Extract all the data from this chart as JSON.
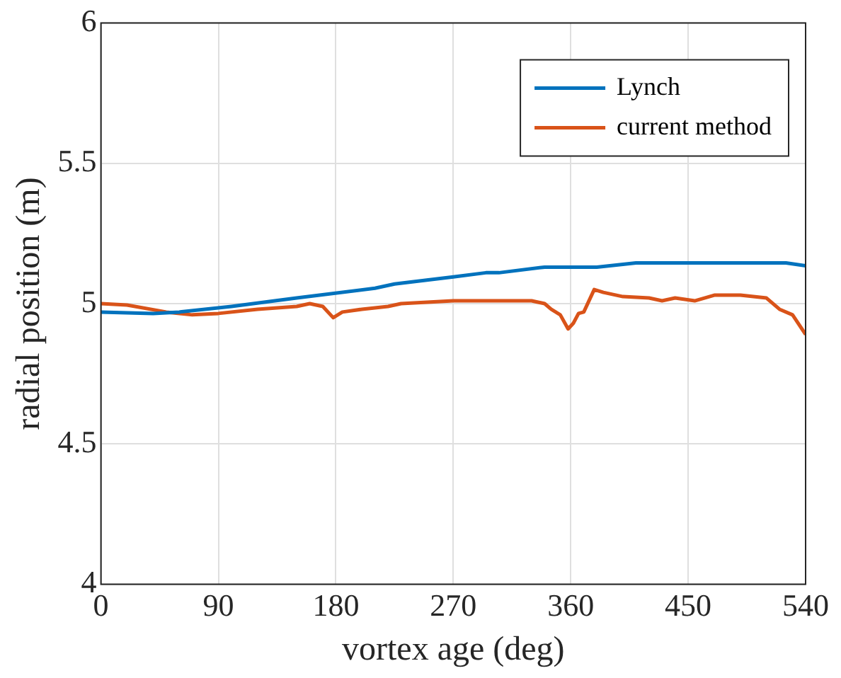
{
  "chart_data": {
    "type": "line",
    "xlabel": "vortex age (deg)",
    "ylabel": "radial position (m)",
    "xlim": [
      0,
      540
    ],
    "xticks": [
      0,
      90,
      180,
      270,
      360,
      450,
      540
    ],
    "ylim": [
      4,
      6
    ],
    "yticks": [
      4,
      4.5,
      5,
      5.5,
      6
    ],
    "grid": true,
    "legend": "top right",
    "series": [
      {
        "name": "Lynch",
        "color": "#0072bd",
        "x": [
          0,
          40,
          60,
          100,
          150,
          210,
          225,
          270,
          295,
          305,
          340,
          380,
          410,
          525,
          540
        ],
        "values": [
          4.97,
          4.965,
          4.97,
          4.99,
          5.02,
          5.055,
          5.07,
          5.095,
          5.11,
          5.11,
          5.13,
          5.13,
          5.145,
          5.145,
          5.135
        ]
      },
      {
        "name": "current method",
        "color": "#d95319",
        "x": [
          0,
          20,
          50,
          70,
          90,
          120,
          150,
          160,
          170,
          178,
          185,
          200,
          220,
          230,
          270,
          300,
          330,
          340,
          345,
          352,
          358,
          362,
          366,
          370,
          378,
          385,
          400,
          420,
          430,
          440,
          455,
          470,
          490,
          510,
          520,
          530,
          540
        ],
        "values": [
          5.0,
          4.995,
          4.97,
          4.96,
          4.965,
          4.98,
          4.99,
          5.0,
          4.99,
          4.95,
          4.97,
          4.98,
          4.99,
          5.0,
          5.01,
          5.01,
          5.01,
          5.0,
          4.98,
          4.96,
          4.91,
          4.93,
          4.965,
          4.97,
          5.05,
          5.04,
          5.025,
          5.02,
          5.01,
          5.02,
          5.01,
          5.03,
          5.03,
          5.02,
          4.98,
          4.96,
          4.89
        ]
      }
    ]
  }
}
